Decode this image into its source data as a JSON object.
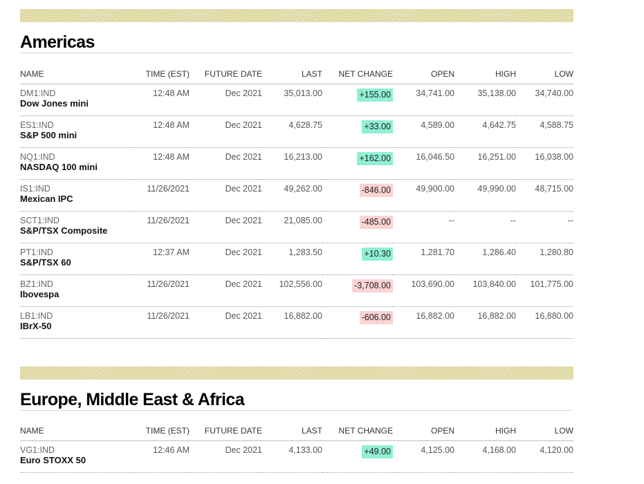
{
  "colors": {
    "positive_bg": "#8ff0d4",
    "negative_bg": "#fbd3d3",
    "stripe": "#d8cf8f"
  },
  "columns": [
    "NAME",
    "TIME (EST)",
    "FUTURE DATE",
    "LAST",
    "NET CHANGE",
    "OPEN",
    "HIGH",
    "LOW"
  ],
  "americas": {
    "title": "Americas",
    "rows": [
      {
        "symbol": "DM1:IND",
        "name": "Dow Jones mini",
        "time": "12:48 AM",
        "future_date": "Dec 2021",
        "last": "35,013.00",
        "net_change": "+155.00",
        "direction": "up",
        "open": "34,741.00",
        "high": "35,138.00",
        "low": "34,740.00"
      },
      {
        "symbol": "ES1:IND",
        "name": "S&P 500 mini",
        "time": "12:48 AM",
        "future_date": "Dec 2021",
        "last": "4,628.75",
        "net_change": "+33.00",
        "direction": "up",
        "open": "4,589.00",
        "high": "4,642.75",
        "low": "4,588.75"
      },
      {
        "symbol": "NQ1:IND",
        "name": "NASDAQ 100 mini",
        "time": "12:48 AM",
        "future_date": "Dec 2021",
        "last": "16,213.00",
        "net_change": "+162.00",
        "direction": "up",
        "open": "16,046.50",
        "high": "16,251.00",
        "low": "16,038.00"
      },
      {
        "symbol": "IS1:IND",
        "name": "Mexican IPC",
        "time": "11/26/2021",
        "future_date": "Dec 2021",
        "last": "49,262.00",
        "net_change": "-846.00",
        "direction": "down",
        "open": "49,900.00",
        "high": "49,990.00",
        "low": "48,715.00"
      },
      {
        "symbol": "SCT1:IND",
        "name": "S&P/TSX Composite",
        "time": "11/26/2021",
        "future_date": "Dec 2021",
        "last": "21,085.00",
        "net_change": "-485.00",
        "direction": "down",
        "open": "--",
        "high": "--",
        "low": "--"
      },
      {
        "symbol": "PT1:IND",
        "name": "S&P/TSX 60",
        "time": "12:37 AM",
        "future_date": "Dec 2021",
        "last": "1,283.50",
        "net_change": "+10.30",
        "direction": "up",
        "open": "1,281.70",
        "high": "1,286.40",
        "low": "1,280.80"
      },
      {
        "symbol": "BZ1:IND",
        "name": "Ibovespa",
        "time": "11/26/2021",
        "future_date": "Dec 2021",
        "last": "102,556.00",
        "net_change": "-3,708.00",
        "direction": "down",
        "open": "103,690.00",
        "high": "103,840.00",
        "low": "101,775.00"
      },
      {
        "symbol": "LB1:IND",
        "name": "IBrX-50",
        "time": "11/26/2021",
        "future_date": "Dec 2021",
        "last": "16,882.00",
        "net_change": "-606.00",
        "direction": "down",
        "open": "16,882.00",
        "high": "16,882.00",
        "low": "16,880.00"
      }
    ]
  },
  "emea": {
    "title": "Europe, Middle East & Africa",
    "rows": [
      {
        "symbol": "VG1:IND",
        "name": "Euro STOXX 50",
        "time": "12:46 AM",
        "future_date": "Dec 2021",
        "last": "4,133.00",
        "net_change": "+49.00",
        "direction": "up",
        "open": "4,125.00",
        "high": "4,168.00",
        "low": "4,120.00"
      }
    ]
  }
}
